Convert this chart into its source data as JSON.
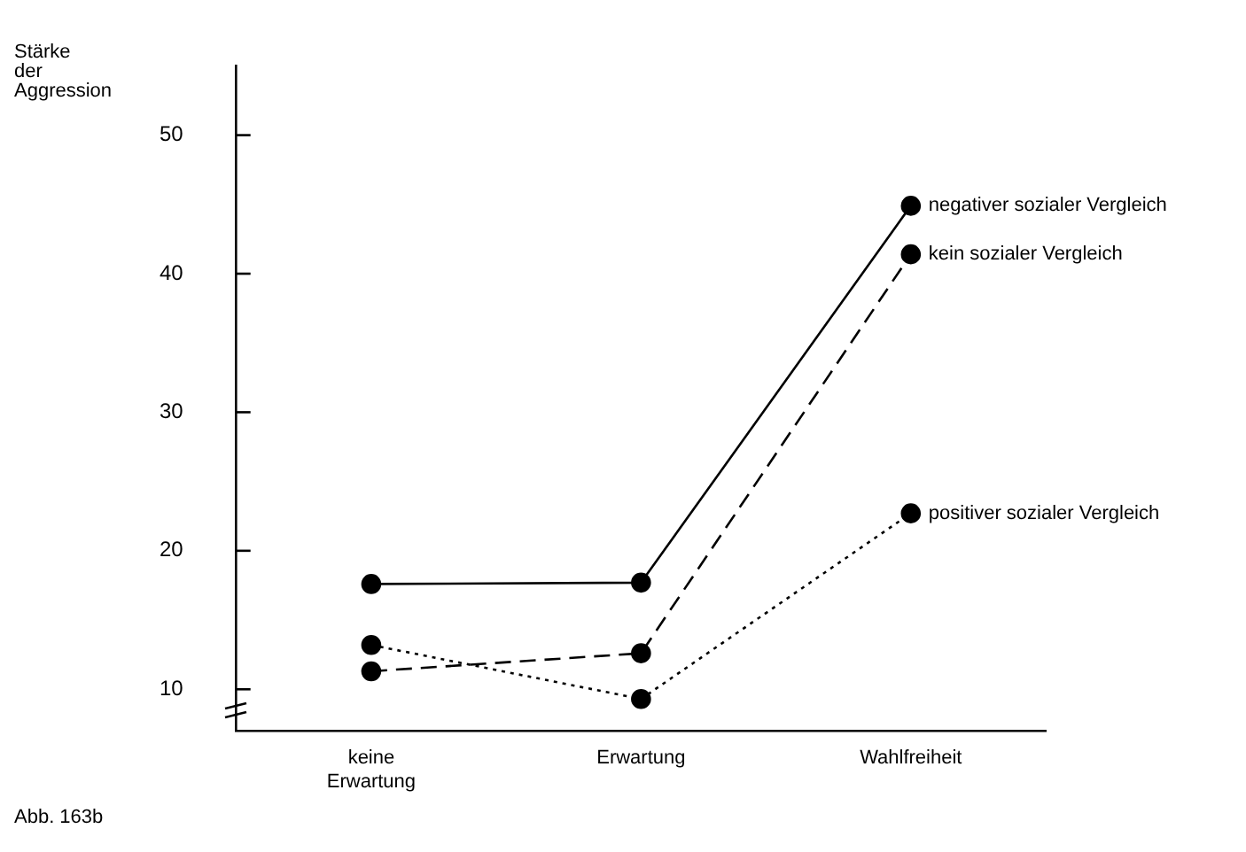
{
  "chart_data": {
    "type": "line",
    "ylabel": "Stärke der Aggression",
    "categories": [
      "keine Erwartung",
      "Erwartung",
      "Wahlfreiheit"
    ],
    "series": [
      {
        "name": "negativer sozialer Vergleich",
        "color": "#000000",
        "line_style": "solid",
        "values": [
          17.6,
          17.7,
          44.9
        ]
      },
      {
        "name": "kein sozialer Vergleich",
        "color": "#000000",
        "line_style": "dashed",
        "values": [
          11.3,
          12.6,
          41.4
        ]
      },
      {
        "name": "positiver sozialer Vergleich",
        "color": "#000000",
        "line_style": "dotted",
        "values": [
          13.2,
          9.3,
          22.7
        ]
      }
    ],
    "ylim": [
      7,
      55
    ],
    "yticks": [
      10,
      20,
      30,
      40,
      50
    ],
    "marker": "circle",
    "annotations": [
      "Abb. 163b"
    ]
  }
}
